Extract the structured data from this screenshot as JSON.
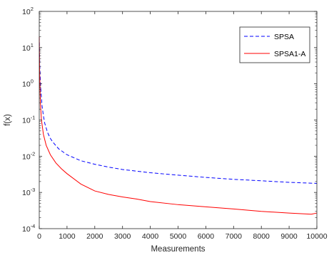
{
  "chart_data": {
    "type": "line",
    "xlabel": "Measurements",
    "ylabel": "f(x)",
    "xlim": [
      0,
      10000
    ],
    "ylim": [
      0.0001,
      100
    ],
    "y_scale": "log",
    "grid": false,
    "legend_position": "top-right",
    "x_ticks": [
      {
        "value": 0,
        "label": "0"
      },
      {
        "value": 1000,
        "label": "1000"
      },
      {
        "value": 2000,
        "label": "2000"
      },
      {
        "value": 3000,
        "label": "3000"
      },
      {
        "value": 4000,
        "label": "4000"
      },
      {
        "value": 5000,
        "label": "5000"
      },
      {
        "value": 6000,
        "label": "6000"
      },
      {
        "value": 7000,
        "label": "7000"
      },
      {
        "value": 8000,
        "label": "8000"
      },
      {
        "value": 9000,
        "label": "9000"
      },
      {
        "value": 10000,
        "label": "10000"
      }
    ],
    "y_ticks": [
      {
        "value": 0.0001,
        "mantissa": "10",
        "exponent": "-4"
      },
      {
        "value": 0.001,
        "mantissa": "10",
        "exponent": "-3"
      },
      {
        "value": 0.01,
        "mantissa": "10",
        "exponent": "-2"
      },
      {
        "value": 0.1,
        "mantissa": "10",
        "exponent": "-1"
      },
      {
        "value": 1,
        "mantissa": "10",
        "exponent": "0"
      },
      {
        "value": 10,
        "mantissa": "10",
        "exponent": "1"
      },
      {
        "value": 100,
        "mantissa": "10",
        "exponent": "2"
      }
    ],
    "series": [
      {
        "name": "SPSA",
        "color": "#0000ff",
        "dash": "dashed",
        "points": [
          [
            0,
            20
          ],
          [
            20,
            3
          ],
          [
            50,
            0.8
          ],
          [
            100,
            0.25
          ],
          [
            150,
            0.13
          ],
          [
            200,
            0.08
          ],
          [
            300,
            0.045
          ],
          [
            400,
            0.031
          ],
          [
            500,
            0.024
          ],
          [
            700,
            0.016
          ],
          [
            1000,
            0.011
          ],
          [
            1500,
            0.0075
          ],
          [
            2000,
            0.006
          ],
          [
            2500,
            0.005
          ],
          [
            3000,
            0.0043
          ],
          [
            4000,
            0.0035
          ],
          [
            5000,
            0.003
          ],
          [
            6000,
            0.0026
          ],
          [
            7000,
            0.0023
          ],
          [
            8000,
            0.0021
          ],
          [
            9000,
            0.0019
          ],
          [
            10000,
            0.00178
          ]
        ]
      },
      {
        "name": "SPSA1-A",
        "color": "#ff0000",
        "dash": "solid",
        "points": [
          [
            0,
            20
          ],
          [
            15,
            2
          ],
          [
            40,
            0.3
          ],
          [
            80,
            0.1
          ],
          [
            150,
            0.04
          ],
          [
            250,
            0.02
          ],
          [
            400,
            0.011
          ],
          [
            600,
            0.0065
          ],
          [
            800,
            0.0045
          ],
          [
            1000,
            0.0033
          ],
          [
            1500,
            0.0017
          ],
          [
            2000,
            0.0011
          ],
          [
            2500,
            0.00088
          ],
          [
            3000,
            0.00075
          ],
          [
            3500,
            0.00066
          ],
          [
            4000,
            0.00056
          ],
          [
            5000,
            0.00046
          ],
          [
            6000,
            0.0004
          ],
          [
            7000,
            0.00035
          ],
          [
            8000,
            0.0003
          ],
          [
            9000,
            0.00027
          ],
          [
            9800,
            0.00025
          ],
          [
            10000,
            0.00027
          ]
        ]
      }
    ]
  }
}
